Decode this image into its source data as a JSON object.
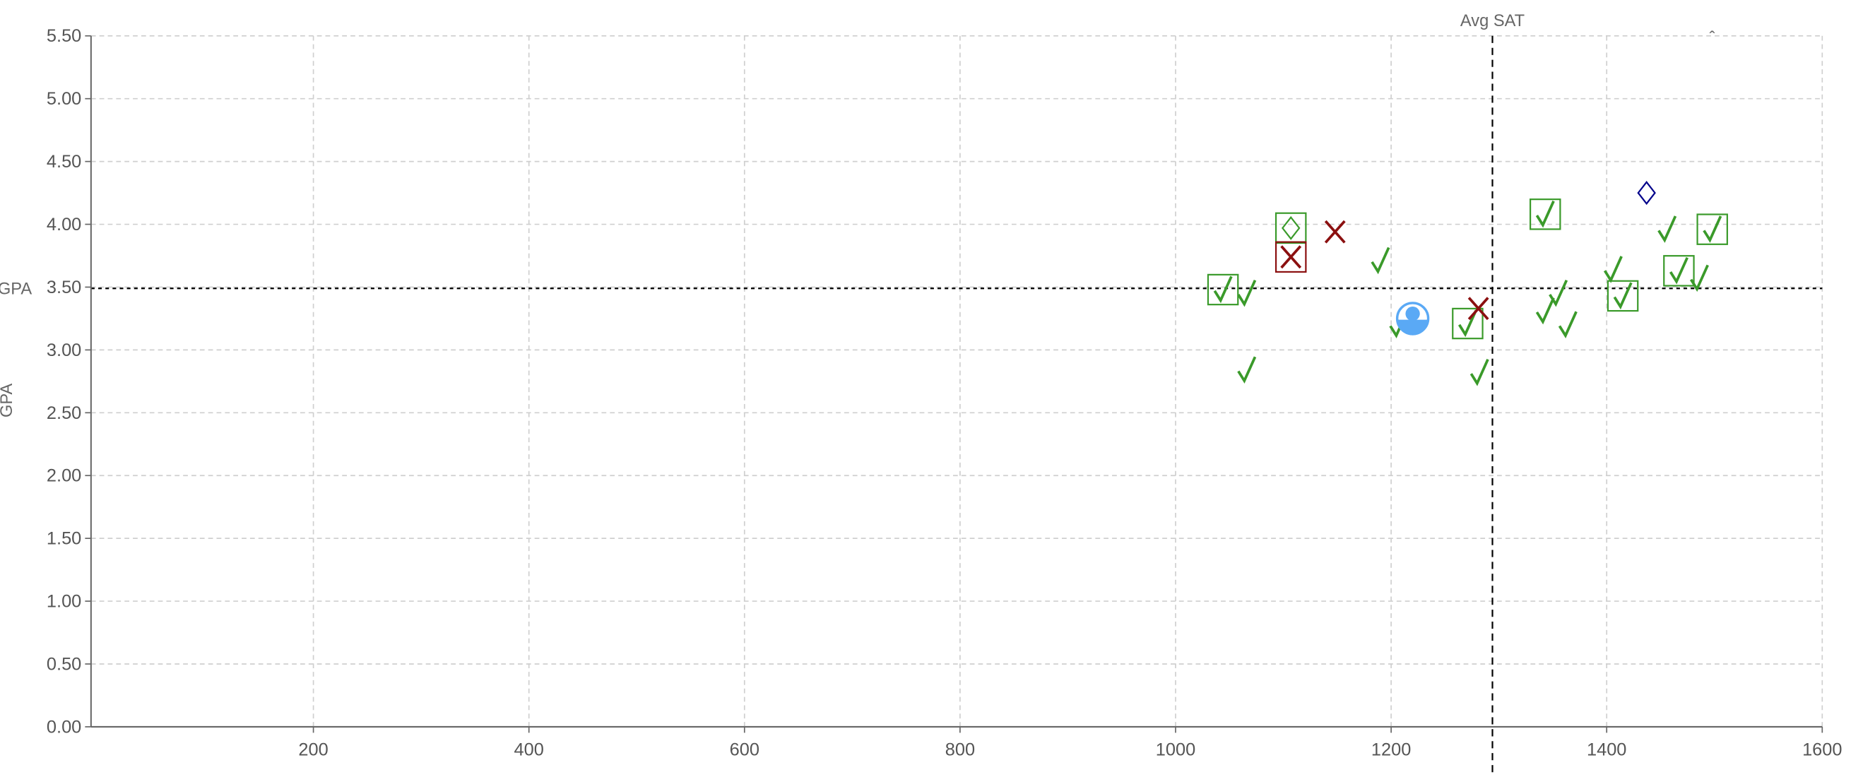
{
  "chart_data": {
    "type": "scatter",
    "xlabel": "",
    "ylabel": "GPA",
    "xlim": [
      0,
      1600
    ],
    "ylim": [
      0,
      5.5
    ],
    "grid": true,
    "x_ticks": [
      "200",
      "400",
      "600",
      "800",
      "1000",
      "1200",
      "1400",
      "1600"
    ],
    "y_ticks": [
      "0.00",
      "0.50",
      "1.00",
      "1.50",
      "2.00",
      "2.50",
      "3.00",
      "3.50",
      "4.00",
      "4.50",
      "5.00",
      "5.50"
    ],
    "reference_lines": [
      {
        "orientation": "vertical",
        "value": 1294,
        "label": "Avg SAT"
      },
      {
        "orientation": "horizontal",
        "value": 3.49,
        "label": "GPA"
      }
    ],
    "corner_mark": "ˆ",
    "colors": {
      "accepted": "#3a9a2a",
      "rejected": "#8b1010",
      "other": "#00008b",
      "user": "#5aa9f5"
    },
    "points": [
      {
        "x": 1066,
        "y": 3.45,
        "marker": "check"
      },
      {
        "x": 1066,
        "y": 2.84,
        "marker": "check"
      },
      {
        "x": 1190,
        "y": 3.71,
        "marker": "check"
      },
      {
        "x": 1207,
        "y": 3.2,
        "marker": "check"
      },
      {
        "x": 1282,
        "y": 2.82,
        "marker": "check"
      },
      {
        "x": 1355,
        "y": 3.45,
        "marker": "check"
      },
      {
        "x": 1343,
        "y": 3.31,
        "marker": "check"
      },
      {
        "x": 1364,
        "y": 3.2,
        "marker": "check"
      },
      {
        "x": 1406,
        "y": 3.64,
        "marker": "check"
      },
      {
        "x": 1456,
        "y": 3.96,
        "marker": "check"
      },
      {
        "x": 1486,
        "y": 3.57,
        "marker": "check"
      },
      {
        "x": 1044,
        "y": 3.48,
        "marker": "check",
        "boxed": true
      },
      {
        "x": 1271,
        "y": 3.21,
        "marker": "check",
        "boxed": true
      },
      {
        "x": 1343,
        "y": 4.08,
        "marker": "check",
        "boxed": true
      },
      {
        "x": 1415,
        "y": 3.43,
        "marker": "check",
        "boxed": true
      },
      {
        "x": 1467,
        "y": 3.63,
        "marker": "check",
        "boxed": true
      },
      {
        "x": 1498,
        "y": 3.96,
        "marker": "check",
        "boxed": true
      },
      {
        "x": 1107,
        "y": 3.97,
        "marker": "diamond",
        "color": "accepted",
        "boxed": true
      },
      {
        "x": 1107,
        "y": 3.74,
        "marker": "x",
        "boxed": true
      },
      {
        "x": 1148,
        "y": 3.94,
        "marker": "x"
      },
      {
        "x": 1281,
        "y": 3.33,
        "marker": "x"
      },
      {
        "x": 1437,
        "y": 4.25,
        "marker": "diamond",
        "color": "other"
      },
      {
        "x": 1220,
        "y": 3.25,
        "marker": "user"
      }
    ]
  }
}
